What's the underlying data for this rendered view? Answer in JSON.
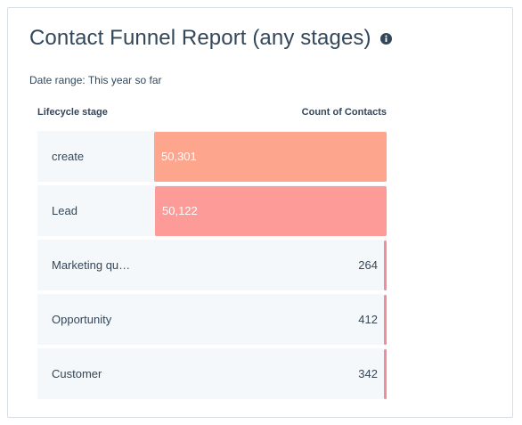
{
  "report": {
    "title": "Contact Funnel Report (any stages)",
    "info_icon": "info-icon",
    "date_range": "Date range: This year so far",
    "col_stage": "Lifecycle stage",
    "col_count": "Count of Contacts"
  },
  "chart_data": {
    "type": "bar",
    "orientation": "horizontal",
    "xlabel": "Count of Contacts",
    "ylabel": "Lifecycle stage",
    "categories": [
      "create",
      "Lead",
      "Marketing qu…",
      "Opportunity",
      "Customer"
    ],
    "values": [
      50301,
      50122,
      264,
      412,
      342
    ],
    "value_labels": [
      "50,301",
      "50,122",
      "264",
      "412",
      "342"
    ],
    "colors": [
      "#fea58e",
      "#fc9b97",
      "#ec8f9a",
      "#ec8f9a",
      "#ec8f9a"
    ]
  }
}
